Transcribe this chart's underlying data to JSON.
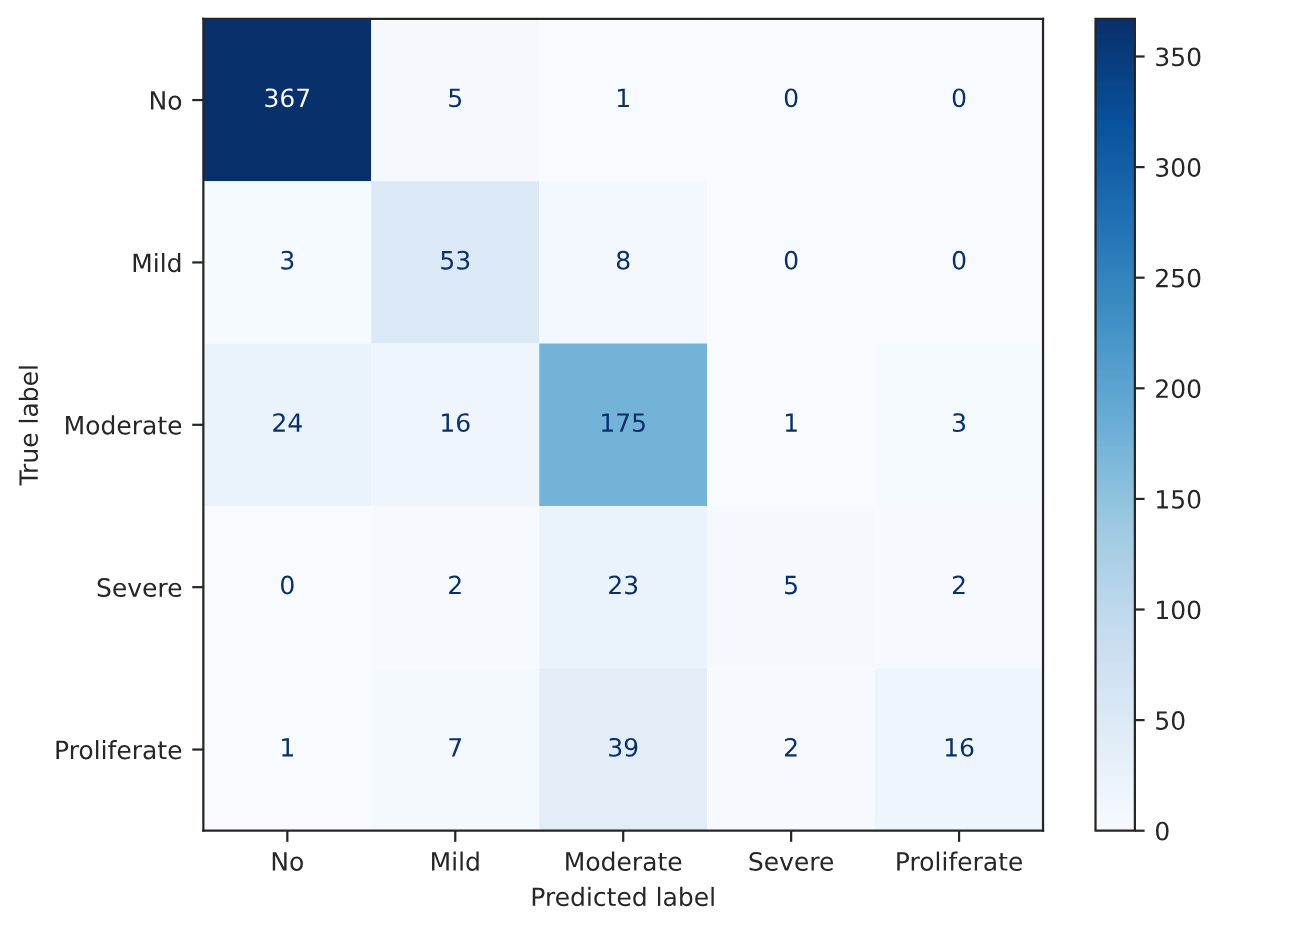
{
  "chart_data": {
    "type": "heatmap",
    "xlabel": "Predicted label",
    "ylabel": "True label",
    "categories": [
      "No",
      "Mild",
      "Moderate",
      "Severe",
      "Proliferate"
    ],
    "y_categories": [
      "No",
      "Mild",
      "Moderate",
      "Severe",
      "Proliferate"
    ],
    "cells": [
      [
        367,
        5,
        1,
        0,
        0
      ],
      [
        3,
        53,
        8,
        0,
        0
      ],
      [
        24,
        16,
        175,
        1,
        3
      ],
      [
        0,
        2,
        23,
        5,
        2
      ],
      [
        1,
        7,
        39,
        2,
        16
      ]
    ],
    "data_labels": true,
    "clim": [
      0,
      367
    ],
    "cticks": [
      0,
      50,
      100,
      150,
      200,
      250,
      300,
      350
    ]
  }
}
